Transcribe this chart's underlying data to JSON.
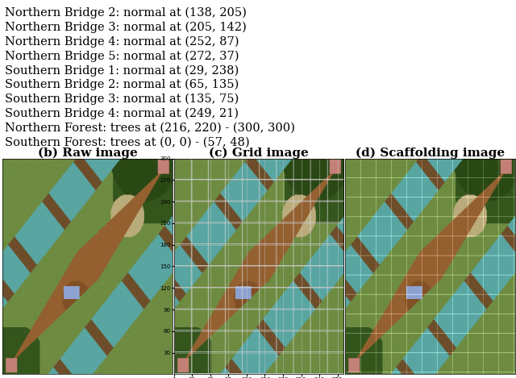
{
  "text_lines": [
    "Northern Bridge 2: normal at (138, 205)",
    "Northern Bridge 3: normal at (205, 142)",
    "Northern Bridge 4: normal at (252, 87)",
    "Northern Bridge 5: normal at (272, 37)",
    "Southern Bridge 1: normal at (29, 238)",
    "Southern Bridge 2: normal at (65, 135)",
    "Southern Bridge 3: normal at (135, 75)",
    "Southern Bridge 4: normal at (249, 21)",
    "Northern Forest: trees at (216, 220) - (300, 300)",
    "Southern Forest: trees at (0, 0) - (57, 48)"
  ],
  "subfig_labels": [
    "(b) Raw image",
    "(c) Grid image",
    "(d) Scaffolding image"
  ],
  "text_fontsize": 10.5,
  "label_fontsize": 11,
  "bg_color": "#ffffff",
  "text_color": "#000000",
  "grid_xticks": [
    0,
    30,
    60,
    90,
    120,
    150,
    180,
    210,
    240,
    270
  ],
  "grid_yticks": [
    30,
    60,
    90,
    120,
    150,
    180,
    210,
    240,
    270,
    300
  ]
}
